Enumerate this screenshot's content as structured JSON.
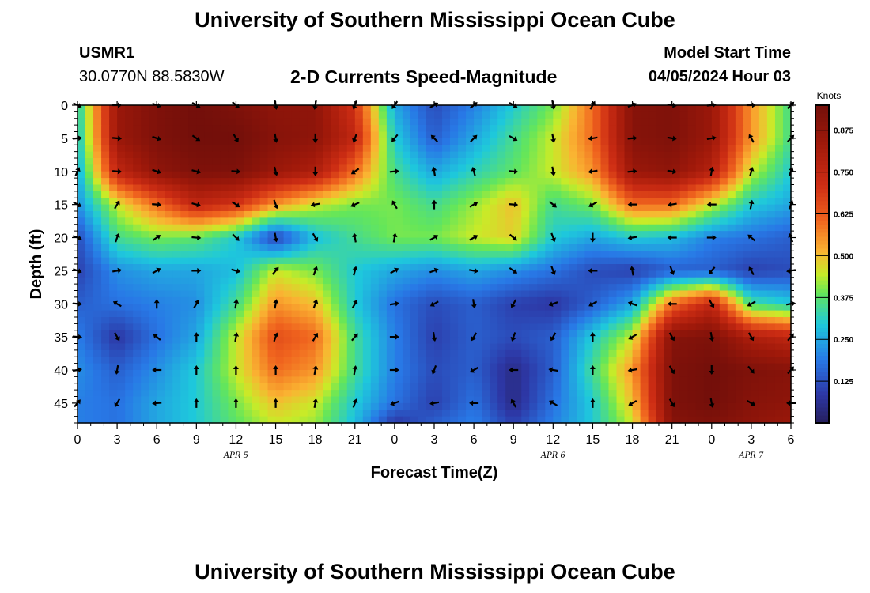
{
  "header": {
    "title": "University of Southern Mississippi Ocean Cube",
    "station_id": "USMR1",
    "station_coords": "30.0770N  88.5830W",
    "subtitle": "2-D Currents Speed-Magnitude",
    "model_start_label": "Model Start Time",
    "model_start_value": "04/05/2024 Hour 03"
  },
  "footer": {
    "title": "University of Southern Mississippi Ocean Cube"
  },
  "chart_data": {
    "type": "heatmap",
    "xlabel": "Forecast Time(Z)",
    "ylabel": "Depth (ft)",
    "x_tick_labels": [
      "0",
      "3",
      "6",
      "9",
      "12",
      "15",
      "18",
      "21",
      "0",
      "3",
      "6",
      "9",
      "12",
      "15",
      "18",
      "21",
      "0",
      "3",
      "6"
    ],
    "x_range_hours": [
      0,
      54
    ],
    "y_ticks": [
      0,
      5,
      10,
      15,
      20,
      25,
      30,
      35,
      40,
      45
    ],
    "y_range_ft": [
      0,
      48
    ],
    "date_labels": [
      {
        "label": "APR 5",
        "hour": 12
      },
      {
        "label": "APR 6",
        "hour": 36
      },
      {
        "label": "APR 7",
        "hour": 51
      }
    ],
    "colorbar": {
      "units": "Knots",
      "range": [
        0,
        0.95
      ],
      "ticks": [
        "0.125",
        "0.250",
        "0.375",
        "0.500",
        "0.625",
        "0.750",
        "0.875"
      ],
      "tick_values": [
        0.125,
        0.25,
        0.375,
        0.5,
        0.625,
        0.75,
        0.875
      ]
    },
    "speed_grid": {
      "x_hours": [
        0,
        3,
        6,
        9,
        12,
        15,
        18,
        21,
        24,
        27,
        30,
        33,
        36,
        39,
        42,
        45,
        48,
        51,
        54
      ],
      "depth_ft": [
        0,
        5,
        10,
        15,
        20,
        25,
        30,
        35,
        40,
        45,
        48
      ],
      "values": [
        [
          0.3,
          0.85,
          0.92,
          0.95,
          0.92,
          0.88,
          0.88,
          0.7,
          0.25,
          0.12,
          0.2,
          0.3,
          0.4,
          0.6,
          0.9,
          0.92,
          0.85,
          0.55,
          0.35
        ],
        [
          0.28,
          0.85,
          0.92,
          0.95,
          0.95,
          0.9,
          0.88,
          0.75,
          0.3,
          0.15,
          0.25,
          0.35,
          0.45,
          0.6,
          0.9,
          0.92,
          0.85,
          0.55,
          0.35
        ],
        [
          0.25,
          0.75,
          0.88,
          0.92,
          0.92,
          0.85,
          0.8,
          0.6,
          0.35,
          0.25,
          0.32,
          0.38,
          0.45,
          0.55,
          0.85,
          0.88,
          0.78,
          0.45,
          0.3
        ],
        [
          0.22,
          0.45,
          0.6,
          0.75,
          0.7,
          0.55,
          0.45,
          0.4,
          0.4,
          0.35,
          0.42,
          0.5,
          0.35,
          0.4,
          0.6,
          0.6,
          0.45,
          0.3,
          0.25
        ],
        [
          0.12,
          0.35,
          0.4,
          0.38,
          0.3,
          0.1,
          0.28,
          0.35,
          0.4,
          0.4,
          0.45,
          0.48,
          0.3,
          0.25,
          0.3,
          0.28,
          0.2,
          0.18,
          0.15
        ],
        [
          0.1,
          0.22,
          0.25,
          0.25,
          0.28,
          0.45,
          0.4,
          0.3,
          0.25,
          0.22,
          0.25,
          0.22,
          0.18,
          0.12,
          0.1,
          0.15,
          0.15,
          0.1,
          0.12
        ],
        [
          0.15,
          0.18,
          0.2,
          0.22,
          0.35,
          0.55,
          0.5,
          0.3,
          0.18,
          0.12,
          0.15,
          0.1,
          0.08,
          0.15,
          0.25,
          0.6,
          0.75,
          0.35,
          0.3
        ],
        [
          0.2,
          0.08,
          0.18,
          0.25,
          0.45,
          0.65,
          0.6,
          0.35,
          0.2,
          0.1,
          0.15,
          0.12,
          0.15,
          0.3,
          0.45,
          0.9,
          0.92,
          0.8,
          0.75
        ],
        [
          0.22,
          0.15,
          0.22,
          0.3,
          0.45,
          0.6,
          0.55,
          0.35,
          0.2,
          0.12,
          0.15,
          0.05,
          0.15,
          0.35,
          0.55,
          0.92,
          0.95,
          0.92,
          0.9
        ],
        [
          0.2,
          0.18,
          0.25,
          0.3,
          0.4,
          0.5,
          0.45,
          0.3,
          0.18,
          0.1,
          0.18,
          0.05,
          0.18,
          0.3,
          0.5,
          0.92,
          0.95,
          0.9,
          0.88
        ],
        [
          0.2,
          0.18,
          0.25,
          0.3,
          0.38,
          0.45,
          0.42,
          0.28,
          0.08,
          0.15,
          0.2,
          0.1,
          0.2,
          0.3,
          0.45,
          0.9,
          0.92,
          0.88,
          0.85
        ]
      ]
    },
    "vectors": {
      "x_hours": [
        0,
        3,
        6,
        9,
        12,
        15,
        18,
        21,
        24,
        27,
        30,
        33,
        36,
        39,
        42,
        45,
        48,
        51,
        54
      ],
      "depth_ft": [
        0,
        5,
        10,
        15,
        20,
        25,
        30,
        35,
        40,
        45
      ],
      "direction_deg": [
        [
          115,
          90,
          110,
          120,
          130,
          170,
          190,
          200,
          215,
          60,
          50,
          120,
          170,
          30,
          70,
          100,
          85,
          90,
          45
        ],
        [
          85,
          95,
          110,
          125,
          150,
          170,
          180,
          200,
          220,
          315,
          45,
          120,
          170,
          260,
          85,
          100,
          80,
          330,
          45
        ],
        [
          25,
          95,
          110,
          105,
          95,
          165,
          180,
          235,
          85,
          350,
          345,
          95,
          170,
          260,
          85,
          100,
          10,
          15,
          20
        ],
        [
          120,
          30,
          95,
          105,
          125,
          160,
          260,
          245,
          330,
          360,
          60,
          95,
          130,
          240,
          270,
          260,
          270,
          10,
          20
        ],
        [
          110,
          20,
          55,
          95,
          135,
          170,
          150,
          350,
          10,
          60,
          60,
          130,
          160,
          180,
          260,
          270,
          90,
          310,
          340
        ],
        [
          110,
          80,
          60,
          90,
          105,
          40,
          20,
          15,
          60,
          70,
          100,
          125,
          160,
          270,
          350,
          160,
          220,
          330,
          260
        ],
        [
          95,
          300,
          360,
          30,
          10,
          10,
          20,
          30,
          80,
          240,
          170,
          210,
          250,
          240,
          290,
          270,
          150,
          240,
          80
        ],
        [
          95,
          150,
          310,
          360,
          10,
          20,
          30,
          40,
          90,
          170,
          210,
          200,
          210,
          360,
          240,
          150,
          170,
          150,
          40
        ],
        [
          80,
          190,
          270,
          360,
          360,
          360,
          10,
          10,
          90,
          200,
          240,
          270,
          280,
          360,
          260,
          150,
          180,
          140,
          40
        ],
        [
          40,
          210,
          265,
          360,
          360,
          360,
          10,
          20,
          250,
          260,
          270,
          330,
          300,
          360,
          240,
          150,
          170,
          120,
          270
        ]
      ]
    },
    "colors": {
      "arrow": "#000000",
      "frame": "#000000"
    }
  }
}
